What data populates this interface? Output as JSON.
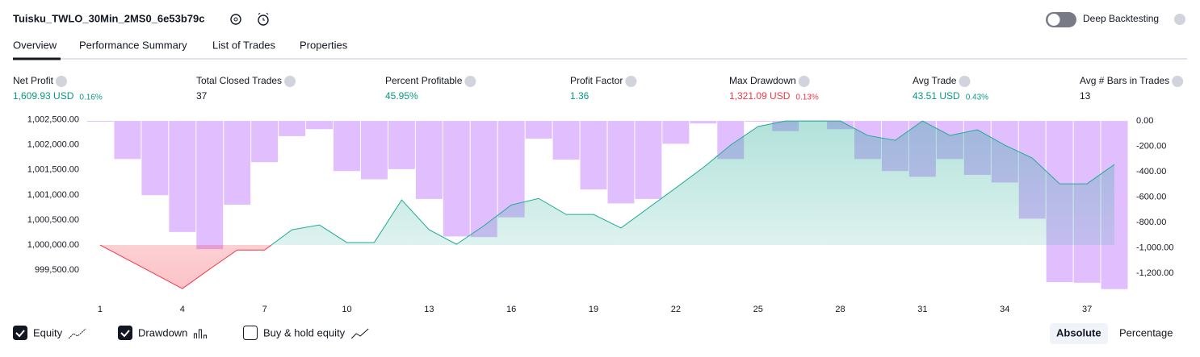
{
  "header": {
    "title": "Tuisku_TWLO_30Min_2MS0_6e53b79c",
    "toggle_label": "Deep Backtesting"
  },
  "tabs": [
    "Overview",
    "Performance Summary",
    "List of Trades",
    "Properties"
  ],
  "metrics": [
    {
      "label": "Net Profit",
      "value": "1,609.93 USD",
      "sub": "0.16%",
      "color": "#089981"
    },
    {
      "label": "Total Closed Trades",
      "value": "37",
      "color": "#131722"
    },
    {
      "label": "Percent Profitable",
      "value": "45.95%",
      "color": "#089981"
    },
    {
      "label": "Profit Factor",
      "value": "1.36",
      "color": "#089981"
    },
    {
      "label": "Max Drawdown",
      "value": "1,321.09 USD",
      "sub": "0.13%",
      "color": "#f23645"
    },
    {
      "label": "Avg Trade",
      "value": "43.51 USD",
      "sub": "0.43%",
      "color": "#089981"
    },
    {
      "label": "Avg # Bars in Trades",
      "value": "13",
      "color": "#131722"
    }
  ],
  "chart_data": {
    "type": "combo",
    "x": [
      1,
      2,
      3,
      4,
      5,
      6,
      7,
      8,
      9,
      10,
      11,
      12,
      13,
      14,
      15,
      16,
      17,
      18,
      19,
      20,
      21,
      22,
      23,
      24,
      25,
      26,
      27,
      28,
      29,
      30,
      31,
      32,
      33,
      34,
      35,
      36,
      37,
      38
    ],
    "xlim": [
      0.5,
      38.5
    ],
    "xticks": [
      1,
      4,
      7,
      10,
      13,
      16,
      19,
      22,
      25,
      28,
      31,
      34,
      37
    ],
    "ylim": [
      999100,
      1002510
    ],
    "yticks": [
      {
        "value": 1002500,
        "label": "1,002,500.00"
      },
      {
        "value": 1002000,
        "label": "1,002,000.00"
      },
      {
        "value": 1001500,
        "label": "1,001,500.00"
      },
      {
        "value": 1001000,
        "label": "1,001,000.00"
      },
      {
        "value": 1000500,
        "label": "1,000,500.00"
      },
      {
        "value": 1000000,
        "label": "1,000,000.00"
      },
      {
        "value": 999500,
        "label": "999,500.00"
      }
    ],
    "y2lim": [
      -1333,
      13
    ],
    "y2ticks": [
      {
        "value": 0,
        "label": "0.00"
      },
      {
        "value": -200,
        "label": "-200.00"
      },
      {
        "value": -400,
        "label": "-400.00"
      },
      {
        "value": -600,
        "label": "-600.00"
      },
      {
        "value": -800,
        "label": "-800.00"
      },
      {
        "value": -1000,
        "label": "-1,000.00"
      },
      {
        "value": -1200,
        "label": "-1,200.00"
      }
    ],
    "series": [
      {
        "name": "Equity",
        "type": "area",
        "axis": "y",
        "color": "#22ab94",
        "negative_color": "#f23645",
        "checked": true,
        "values": [
          1000000,
          999710,
          999420,
          999130,
          999520,
          999900,
          999900,
          1000305,
          1000400,
          1000050,
          1000050,
          1000900,
          1000305,
          1000015,
          1000385,
          1000800,
          1000930,
          1000610,
          1000610,
          1000340,
          1000740,
          1001140,
          1001545,
          1001995,
          1002365,
          1002475,
          1002475,
          1002475,
          1002187,
          1002090,
          1002476,
          1002187,
          1002300,
          1001994,
          1001737,
          1001222,
          1001222,
          1001608
        ]
      },
      {
        "name": "Drawdown",
        "type": "bar",
        "axis": "y2",
        "color": "#e1bfff",
        "checked": true,
        "values": [
          0,
          -300,
          -585,
          -875,
          -1010,
          -660,
          -325,
          -120,
          -65,
          -395,
          -460,
          -380,
          -615,
          -910,
          -915,
          -760,
          -140,
          -305,
          -540,
          -650,
          -615,
          -180,
          -20,
          -300,
          0,
          -80,
          0,
          -65,
          -300,
          -395,
          -440,
          -300,
          -425,
          -485,
          -770,
          -1270,
          -1275,
          -1325
        ]
      },
      {
        "name": "Buy & hold equity",
        "checked": false
      }
    ],
    "modes": [
      "Absolute",
      "Percentage"
    ],
    "active_mode": 0
  }
}
